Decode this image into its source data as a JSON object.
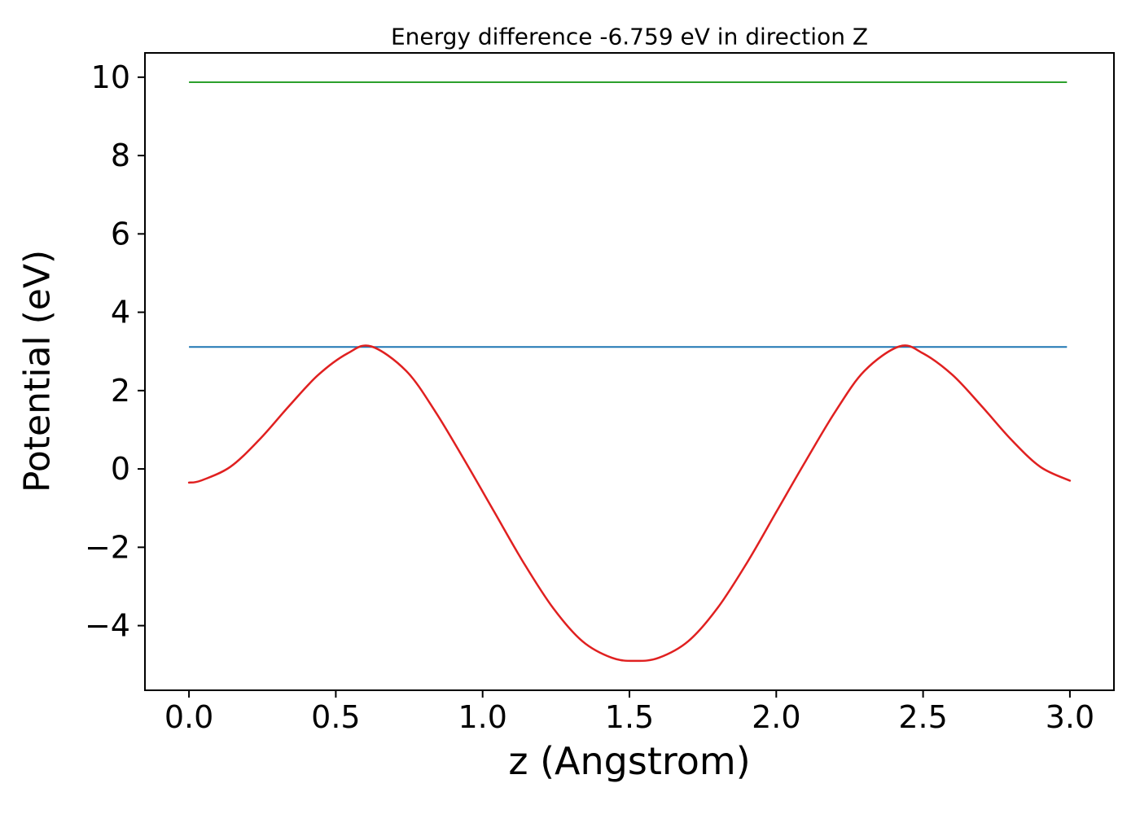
{
  "chart_data": {
    "type": "line",
    "title": "Energy difference -6.759 eV in direction Z",
    "xlabel": "z (Angstrom)",
    "ylabel": "Potential (eV)",
    "xlim": [
      -0.15,
      3.15
    ],
    "ylim": [
      -5.65,
      10.62
    ],
    "grid": false,
    "legend": "none",
    "x_ticks": [
      {
        "value": 0.0,
        "label": "0.0"
      },
      {
        "value": 0.5,
        "label": "0.5"
      },
      {
        "value": 1.0,
        "label": "1.0"
      },
      {
        "value": 1.5,
        "label": "1.5"
      },
      {
        "value": 2.0,
        "label": "2.0"
      },
      {
        "value": 2.5,
        "label": "2.5"
      },
      {
        "value": 3.0,
        "label": "3.0"
      }
    ],
    "y_ticks": [
      {
        "value": -4,
        "label": "−4"
      },
      {
        "value": -2,
        "label": "−2"
      },
      {
        "value": 0,
        "label": "0"
      },
      {
        "value": 2,
        "label": "2"
      },
      {
        "value": 4,
        "label": "4"
      },
      {
        "value": 6,
        "label": "6"
      },
      {
        "value": 8,
        "label": "8"
      },
      {
        "value": 10,
        "label": "10"
      }
    ],
    "energy_difference_eV": -6.759,
    "series": [
      {
        "name": "vacuum-level-line",
        "type": "hline",
        "color": "#2ca02c",
        "y": 9.872,
        "x_start": 0.0,
        "x_end": 2.99,
        "width": 2
      },
      {
        "name": "reference-level-line",
        "type": "hline",
        "color": "#1f77b4",
        "y": 3.113,
        "x_start": 0.0,
        "x_end": 2.99,
        "width": 2
      },
      {
        "name": "planar-average-potential-curve",
        "type": "curve",
        "color": "#e02020",
        "width": 2.5,
        "points": [
          [
            0.0,
            -0.35
          ],
          [
            0.04,
            -0.3
          ],
          [
            0.14,
            0.05
          ],
          [
            0.24,
            0.75
          ],
          [
            0.34,
            1.6
          ],
          [
            0.44,
            2.4
          ],
          [
            0.54,
            2.95
          ],
          [
            0.62,
            3.13
          ],
          [
            0.74,
            2.5
          ],
          [
            0.84,
            1.45
          ],
          [
            0.94,
            0.2
          ],
          [
            1.04,
            -1.1
          ],
          [
            1.14,
            -2.4
          ],
          [
            1.24,
            -3.55
          ],
          [
            1.34,
            -4.4
          ],
          [
            1.44,
            -4.82
          ],
          [
            1.52,
            -4.9
          ],
          [
            1.6,
            -4.82
          ],
          [
            1.7,
            -4.4
          ],
          [
            1.8,
            -3.55
          ],
          [
            1.9,
            -2.4
          ],
          [
            2.0,
            -1.1
          ],
          [
            2.1,
            0.2
          ],
          [
            2.2,
            1.45
          ],
          [
            2.3,
            2.5
          ],
          [
            2.42,
            3.13
          ],
          [
            2.5,
            2.95
          ],
          [
            2.6,
            2.4
          ],
          [
            2.7,
            1.6
          ],
          [
            2.8,
            0.75
          ],
          [
            2.9,
            0.05
          ],
          [
            3.0,
            -0.3
          ]
        ]
      }
    ]
  }
}
